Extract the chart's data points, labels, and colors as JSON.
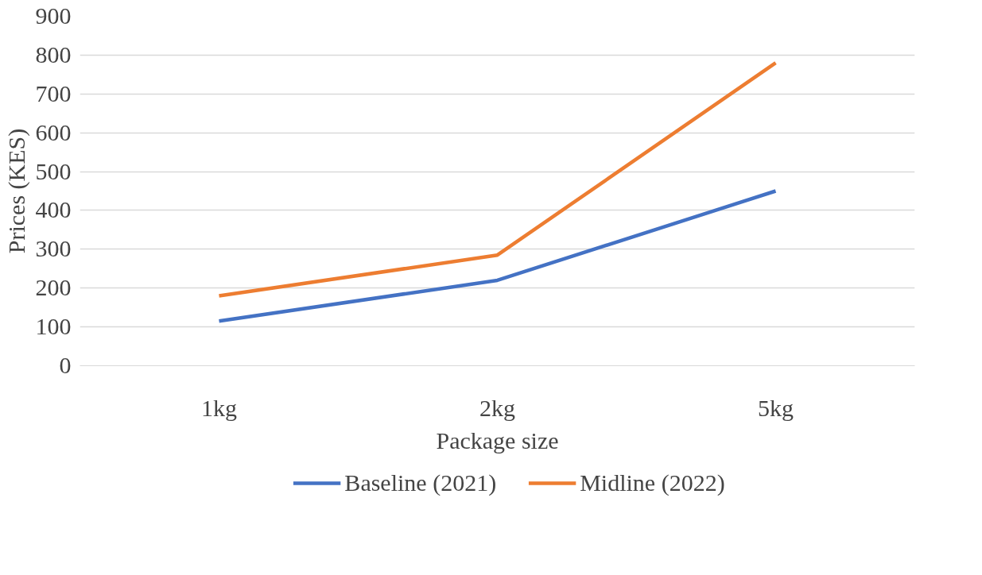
{
  "chart_data": {
    "type": "line",
    "xlabel": "Package size",
    "ylabel": "Prices (KES)",
    "categories": [
      "1kg",
      "2kg",
      "5kg"
    ],
    "series": [
      {
        "name": "Baseline (2021)",
        "color": "#4472c4",
        "values": [
          115,
          220,
          450
        ]
      },
      {
        "name": "Midline (2022)",
        "color": "#ed7d31",
        "values": [
          180,
          285,
          780
        ]
      }
    ],
    "ylim": [
      0,
      900
    ],
    "yticks": [
      0,
      100,
      200,
      300,
      400,
      500,
      600,
      700,
      800,
      900
    ],
    "grid": "y",
    "legend": "bottom",
    "marker": "none",
    "line_style": "solid"
  }
}
